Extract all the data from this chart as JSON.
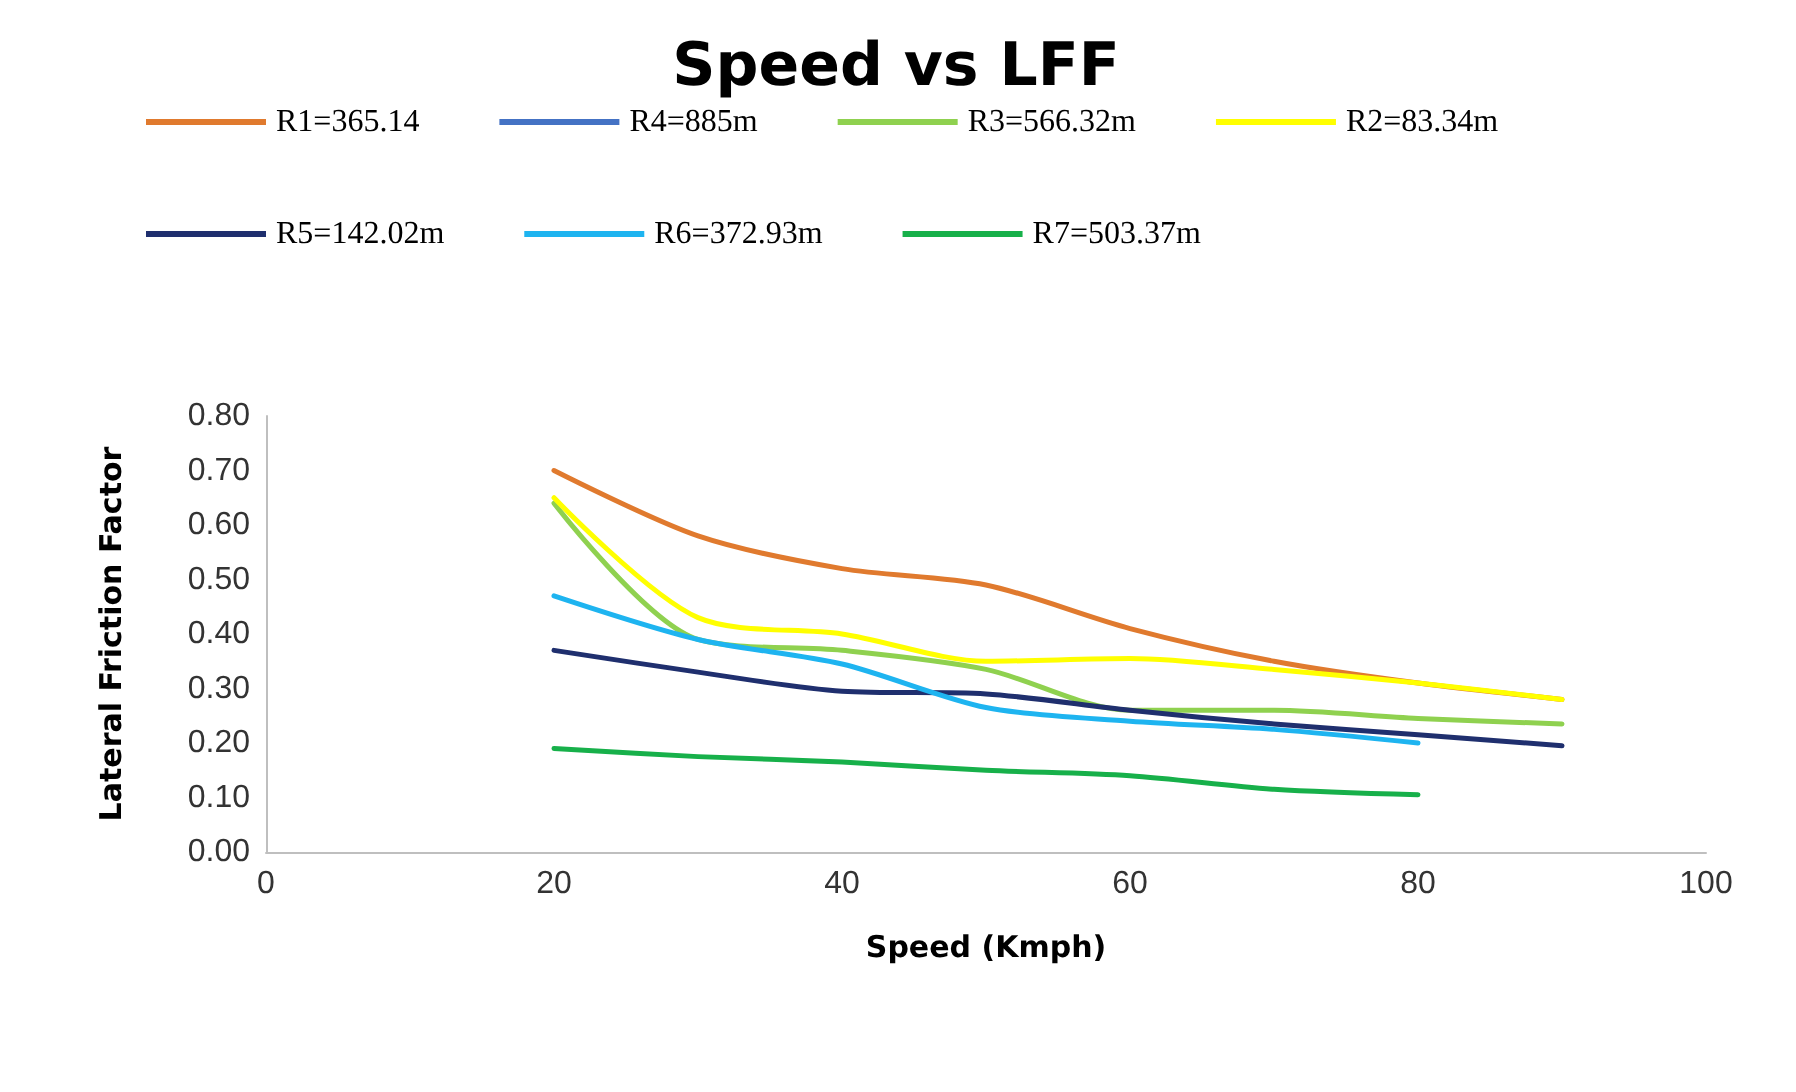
{
  "chart_data": {
    "type": "line",
    "title": "Speed vs LFF",
    "xlabel": "Speed (Kmph)",
    "ylabel": "Lateral Friction Factor",
    "x": [
      20,
      30,
      40,
      50,
      60,
      70,
      80,
      90
    ],
    "xlim": [
      0,
      100
    ],
    "xticks": [
      0,
      20,
      40,
      60,
      80,
      100
    ],
    "ylim": [
      0,
      0.8
    ],
    "yticks": [
      {
        "value": 0,
        "label": "0.00"
      },
      {
        "value": 0.1,
        "label": "0.10"
      },
      {
        "value": 0.2,
        "label": "0.20"
      },
      {
        "value": 0.3,
        "label": "0.30"
      },
      {
        "value": 0.4,
        "label": "0.40"
      },
      {
        "value": 0.5,
        "label": "0.50"
      },
      {
        "value": 0.6,
        "label": "0.60"
      },
      {
        "value": 0.7,
        "label": "0.70"
      },
      {
        "value": 0.8,
        "label": "0.80"
      }
    ],
    "grid": false,
    "legend": "top",
    "marker": "none",
    "line_style": "solid",
    "series": [
      {
        "name": "R1=365.14",
        "color": "#e07a2e",
        "values": [
          0.7,
          0.58,
          0.52,
          0.49,
          0.41,
          0.35,
          0.31,
          0.28
        ]
      },
      {
        "name": "R4=885m",
        "color": "#4472c4",
        "values": [
          null,
          null,
          null,
          null,
          null,
          null,
          null,
          null
        ]
      },
      {
        "name": "R3=566.32m",
        "color": "#8fd14f",
        "values": [
          0.64,
          0.39,
          0.37,
          0.335,
          0.26,
          0.26,
          0.245,
          0.235
        ]
      },
      {
        "name": "R2=83.34m",
        "color": "#ffff00",
        "values": [
          0.65,
          0.43,
          0.4,
          0.35,
          0.355,
          0.335,
          0.31,
          0.28
        ]
      },
      {
        "name": "R5=142.02m",
        "color": "#1f2f6e",
        "values": [
          0.37,
          0.33,
          0.295,
          0.29,
          0.26,
          0.235,
          0.215,
          0.195
        ]
      },
      {
        "name": "R6=372.93m",
        "color": "#1eb4f0",
        "values": [
          0.47,
          0.39,
          0.345,
          0.265,
          0.24,
          0.225,
          0.2,
          null
        ]
      },
      {
        "name": "R7=503.37m",
        "color": "#17b04a",
        "values": [
          0.19,
          0.175,
          0.165,
          0.15,
          0.14,
          0.115,
          0.105,
          null
        ]
      }
    ]
  }
}
